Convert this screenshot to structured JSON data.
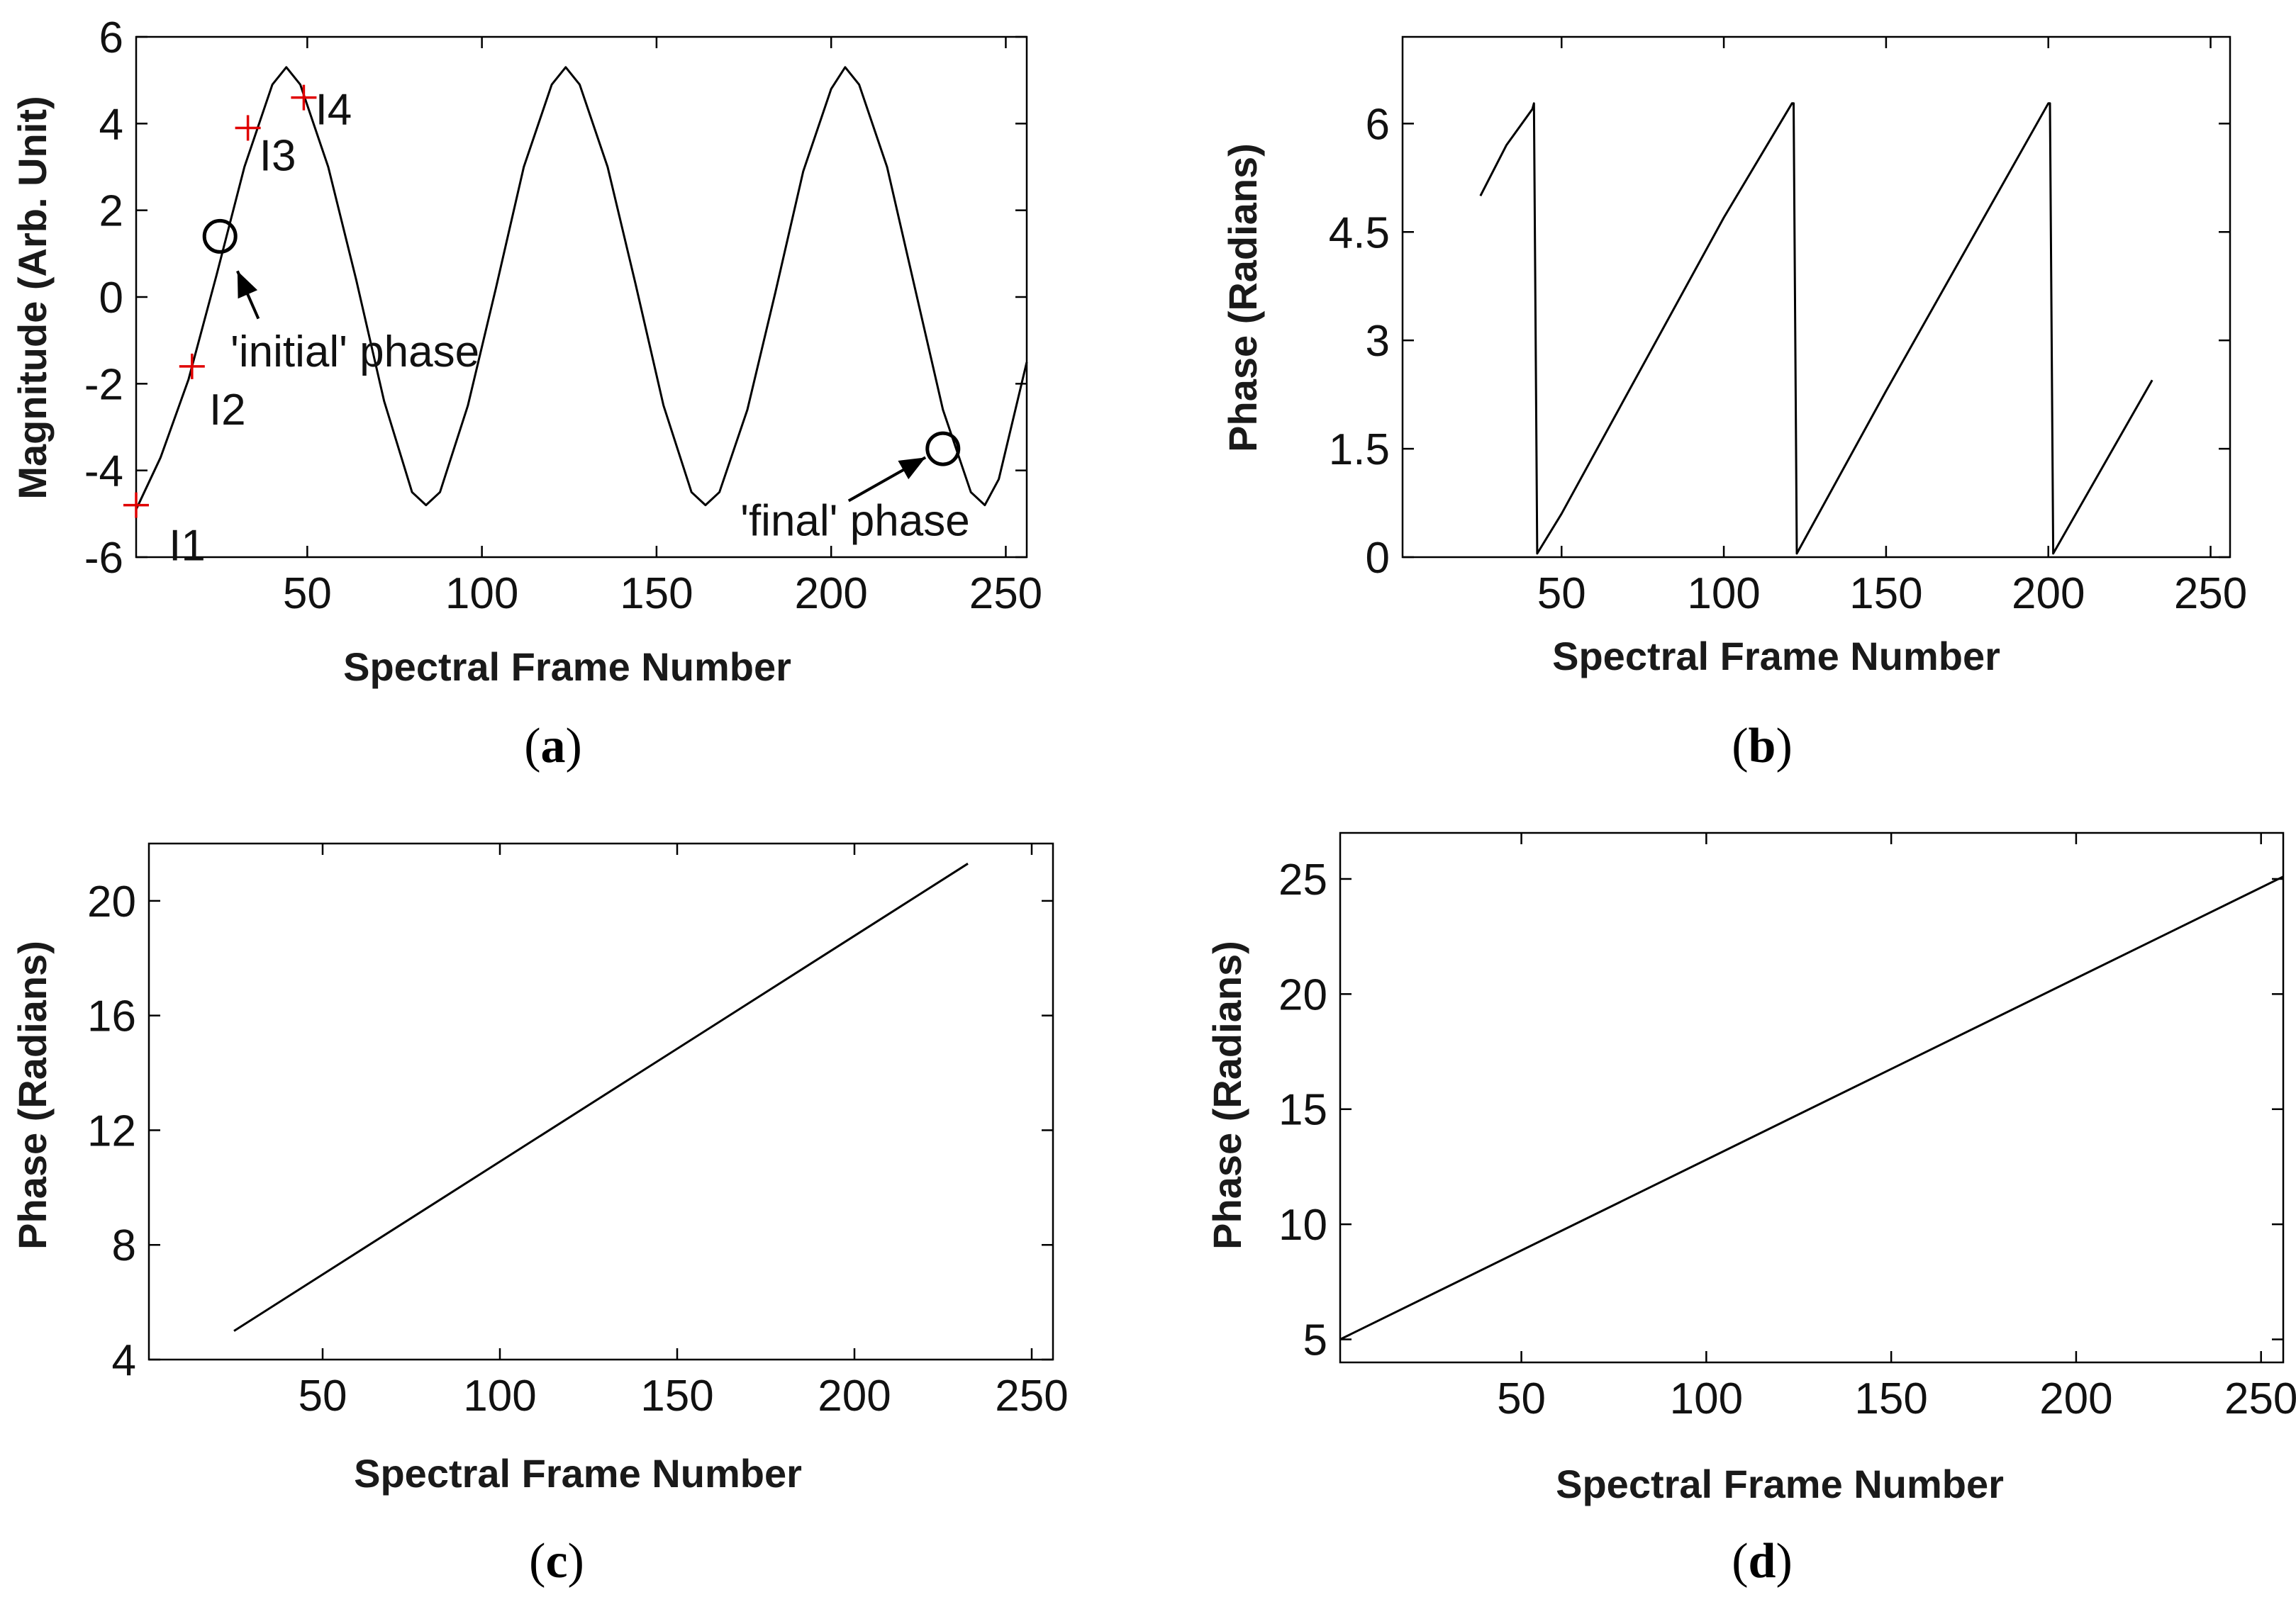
{
  "colors": {
    "line": "#000000",
    "marker": "#e00000",
    "axes": "#000000"
  },
  "chart_data": [
    {
      "id": "a",
      "type": "line",
      "caption": "a",
      "xlabel": "Spectral Frame Number",
      "ylabel": "Magnitude (Arb. Unit)",
      "xlim": [
        1,
        256
      ],
      "ylim": [
        -6,
        6
      ],
      "xticks": [
        50,
        100,
        150,
        200,
        250
      ],
      "yticks": [
        -6,
        -4,
        -2,
        0,
        2,
        4,
        6
      ],
      "x": [
        1,
        8,
        16,
        24,
        32,
        40,
        44,
        48,
        56,
        64,
        72,
        80,
        84,
        88,
        96,
        104,
        112,
        120,
        124,
        128,
        136,
        144,
        152,
        160,
        164,
        168,
        176,
        184,
        192,
        200,
        204,
        208,
        216,
        224,
        232,
        240,
        244,
        248,
        256
      ],
      "values": [
        -4.9,
        -3.7,
        -1.9,
        0.5,
        3.0,
        4.9,
        5.3,
        4.9,
        3.0,
        0.4,
        -2.4,
        -4.5,
        -4.8,
        -4.5,
        -2.5,
        0.2,
        3.0,
        4.9,
        5.3,
        4.9,
        3.0,
        0.3,
        -2.5,
        -4.5,
        -4.8,
        -4.5,
        -2.6,
        0.1,
        2.9,
        4.8,
        5.3,
        4.9,
        3.0,
        0.2,
        -2.6,
        -4.5,
        -4.8,
        -4.2,
        -1.5
      ],
      "markers": [
        {
          "label": "I1",
          "x": 1,
          "y": -4.8
        },
        {
          "label": "I2",
          "x": 17,
          "y": -1.6
        },
        {
          "label": "I3",
          "x": 33,
          "y": 3.9
        },
        {
          "label": "I4",
          "x": 49,
          "y": 4.6
        }
      ],
      "circles": [
        {
          "x": 25,
          "y": 1.4
        },
        {
          "x": 232,
          "y": -3.5
        }
      ],
      "annotations": [
        {
          "text": "'initial' phase",
          "x": 28,
          "y": -1.6,
          "arrow_to": [
            30,
            0.6
          ]
        },
        {
          "text": "'final' phase",
          "x": 174,
          "y": -5.5,
          "arrow_to": [
            227,
            -3.7
          ]
        }
      ]
    },
    {
      "id": "b",
      "type": "line",
      "caption": "b",
      "xlabel": "Spectral Frame Number",
      "ylabel": "Phase (Radians)",
      "xlim": [
        1,
        256
      ],
      "ylim": [
        0,
        7.2
      ],
      "xticks": [
        50,
        100,
        150,
        200,
        250
      ],
      "yticks": [
        0,
        1.5,
        3,
        4.5,
        6
      ],
      "yticklabels": [
        "0",
        "1.5",
        "3",
        "4.5",
        "6"
      ],
      "x": [
        25,
        33,
        41,
        41.5,
        42.5,
        50,
        100,
        121,
        121.5,
        122.5,
        150,
        200,
        200.5,
        201.5,
        232
      ],
      "values": [
        5.0,
        5.7,
        6.2,
        6.28,
        0.05,
        0.6,
        4.7,
        6.28,
        6.28,
        0.05,
        2.3,
        6.28,
        6.28,
        0.05,
        2.45
      ]
    },
    {
      "id": "c",
      "type": "line",
      "caption": "c",
      "xlabel": "Spectral Frame Number",
      "ylabel": "Phase (Radians)",
      "xlim": [
        1,
        256
      ],
      "ylim": [
        4,
        22
      ],
      "xticks": [
        50,
        100,
        150,
        200,
        250
      ],
      "yticks": [
        4,
        8,
        12,
        16,
        20
      ],
      "x": [
        25,
        232
      ],
      "values": [
        5.0,
        21.3
      ]
    },
    {
      "id": "d",
      "type": "line",
      "caption": "d",
      "xlabel": "Spectral Frame Number",
      "ylabel": "Phase (Radians)",
      "xlim": [
        1,
        256
      ],
      "ylim": [
        4,
        27
      ],
      "xticks": [
        50,
        100,
        150,
        200,
        250
      ],
      "yticks": [
        5,
        10,
        15,
        20,
        25
      ],
      "x": [
        1,
        256
      ],
      "values": [
        5.0,
        25.1
      ]
    }
  ]
}
